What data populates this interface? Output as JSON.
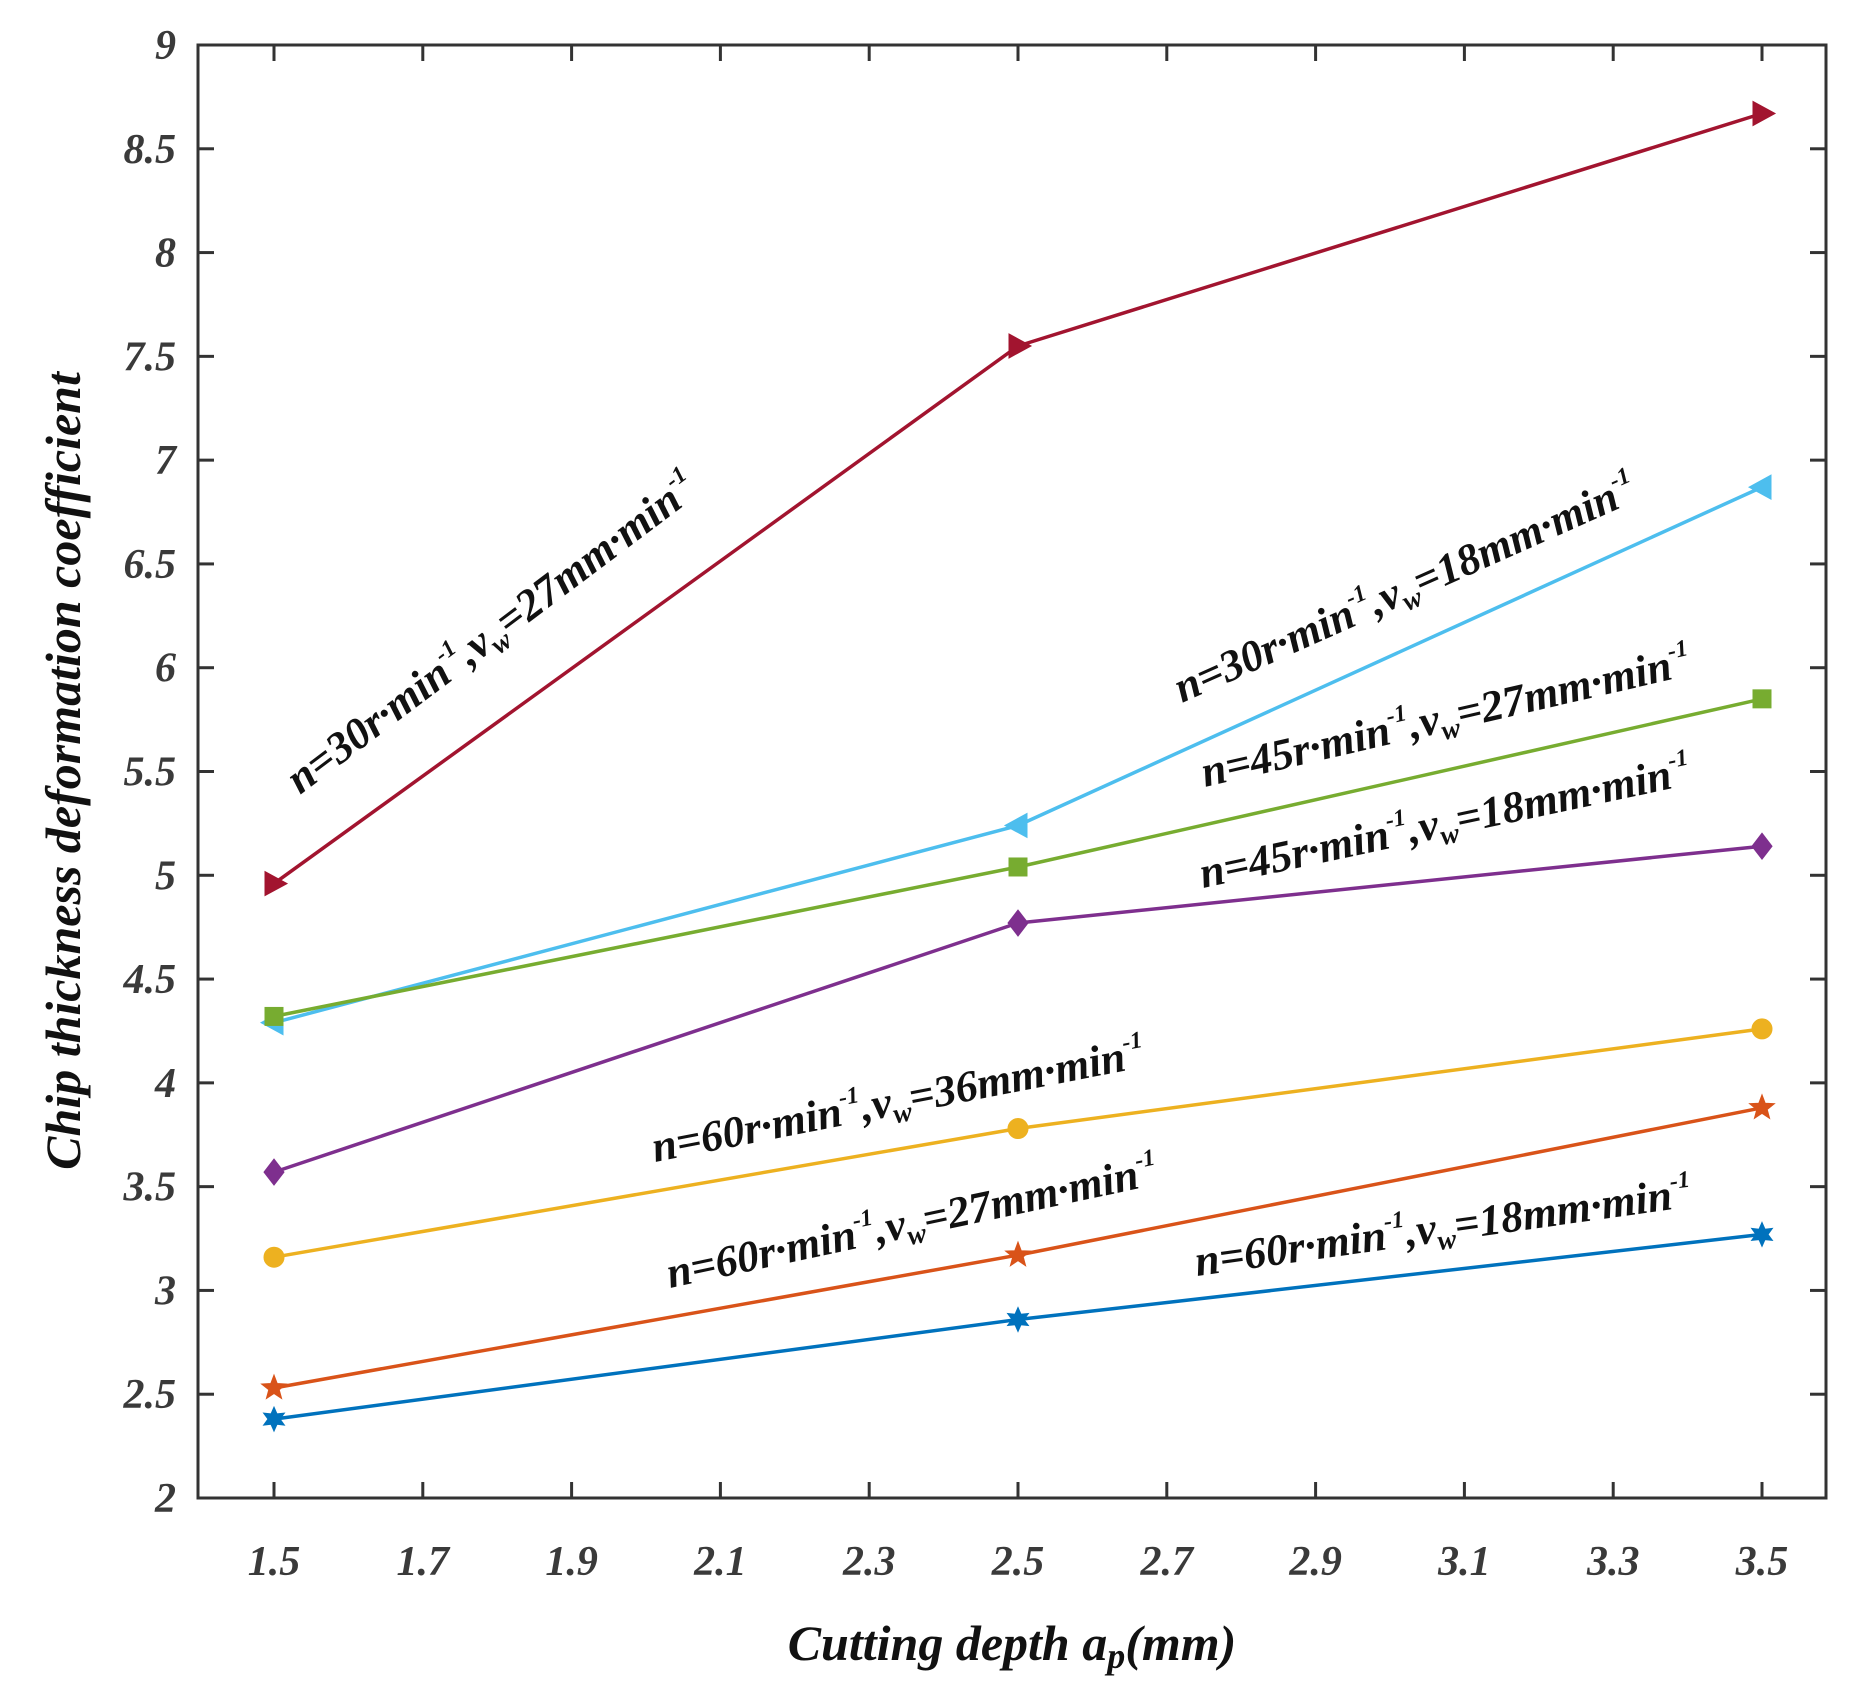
{
  "chart_data": {
    "type": "line",
    "title": "",
    "xlabel": "Cutting depth a",
    "xlabel_sub": "p",
    "xlabel_unit": "(mm)",
    "ylabel": "Chip thickness deformation coefficient",
    "xlim": [
      1.5,
      3.5
    ],
    "ylim": [
      2,
      9
    ],
    "grid": false,
    "x_ticks": [
      1.5,
      1.7,
      1.9,
      2.1,
      2.3,
      2.5,
      2.7,
      2.9,
      3.1,
      3.3,
      3.5
    ],
    "x_tick_labels": [
      "1.5",
      "1.7",
      "1.9",
      "2.1",
      "2.3",
      "2.5",
      "2.7",
      "2.9",
      "3.1",
      "3.3",
      "3.5"
    ],
    "y_ticks": [
      2,
      2.5,
      3,
      3.5,
      4,
      4.5,
      5,
      5.5,
      6,
      6.5,
      7,
      7.5,
      8,
      8.5,
      9
    ],
    "y_tick_labels": [
      "2",
      "2.5",
      "3",
      "3.5",
      "4",
      "4.5",
      "5",
      "5.5",
      "6",
      "6.5",
      "7",
      "7.5",
      "8",
      "8.5",
      "9"
    ],
    "x": [
      1.5,
      2.5,
      3.5
    ],
    "series": [
      {
        "name": "n=30r·min-1,vw=27mm·min-1",
        "values": [
          4.96,
          7.55,
          8.67
        ],
        "color": "#a2142f",
        "marker": "triangle-right"
      },
      {
        "name": "n=30r·min-1,vw=18mm·min-1",
        "values": [
          4.29,
          5.24,
          6.87
        ],
        "color": "#4dbeee",
        "marker": "triangle-left"
      },
      {
        "name": "n=45r·min-1,vw=27mm·min-1",
        "values": [
          4.32,
          5.04,
          5.85
        ],
        "color": "#77ac30",
        "marker": "square"
      },
      {
        "name": "n=45r·min-1,vw=18mm·min-1",
        "values": [
          3.57,
          4.77,
          5.14
        ],
        "color": "#7e2f8e",
        "marker": "diamond"
      },
      {
        "name": "n=60r·min-1,vw=36mm·min-1",
        "values": [
          3.16,
          3.78,
          4.26
        ],
        "color": "#edb120",
        "marker": "circle"
      },
      {
        "name": "n=60r·min-1,vw=27mm·min-1",
        "values": [
          2.53,
          3.17,
          3.88
        ],
        "color": "#d95319",
        "marker": "pentagram"
      },
      {
        "name": "n=60r·min-1,vw=18mm·min-1",
        "values": [
          2.38,
          2.86,
          3.27
        ],
        "color": "#0072bd",
        "marker": "hexagram"
      }
    ],
    "annotations": [
      {
        "a": "n=30r·min",
        "b": "-1",
        "c": ",v",
        "d": "w",
        "e": "=27mm·min",
        "f": "-1"
      },
      {
        "a": "n=30r·min",
        "b": "-1",
        "c": ",v",
        "d": "w",
        "e": "=18mm·min",
        "f": "-1"
      },
      {
        "a": "n=45r·min",
        "b": "-1",
        "c": ",v",
        "d": "w",
        "e": "=27mm·min",
        "f": "-1"
      },
      {
        "a": "n=45r·min",
        "b": "-1",
        "c": ",v",
        "d": "w",
        "e": "=18mm·min",
        "f": "-1"
      },
      {
        "a": "n=60r·min",
        "b": "-1",
        "c": ",v",
        "d": "w",
        "e": "=36mm·min",
        "f": "-1"
      },
      {
        "a": "n=60r·min",
        "b": "-1",
        "c": ",v",
        "d": "w",
        "e": "=27mm·min",
        "f": "-1"
      },
      {
        "a": "n=60r·min",
        "b": "-1",
        "c": ",v",
        "d": "w",
        "e": "=18mm·min",
        "f": "-1"
      }
    ]
  }
}
